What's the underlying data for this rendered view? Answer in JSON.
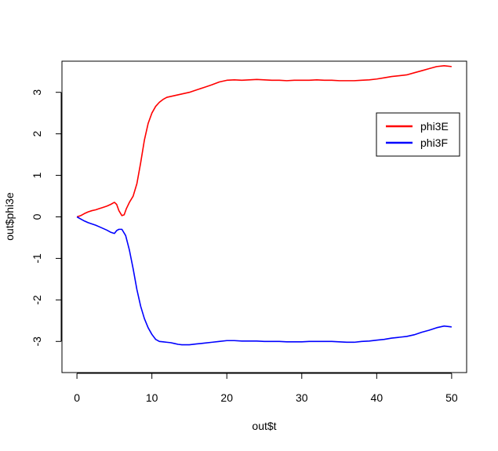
{
  "chart_data": {
    "type": "line",
    "title": "",
    "xlabel": "out$t",
    "ylabel": "out$phi3e",
    "xlim": [
      -2,
      52
    ],
    "ylim": [
      -3.75,
      3.75
    ],
    "xticks": [
      0,
      10,
      20,
      30,
      40,
      50
    ],
    "yticks": [
      -3,
      -2,
      -1,
      0,
      1,
      2,
      3
    ],
    "grid": false,
    "legend_position": "top-right",
    "series": [
      {
        "name": "phi3E",
        "color": "#ff0000",
        "points": [
          [
            0,
            0
          ],
          [
            0.5,
            0.03
          ],
          [
            1,
            0.08
          ],
          [
            1.5,
            0.12
          ],
          [
            2,
            0.15
          ],
          [
            2.5,
            0.17
          ],
          [
            3,
            0.2
          ],
          [
            3.5,
            0.23
          ],
          [
            4,
            0.26
          ],
          [
            4.5,
            0.3
          ],
          [
            5,
            0.35
          ],
          [
            5.3,
            0.3
          ],
          [
            5.6,
            0.15
          ],
          [
            6,
            0.03
          ],
          [
            6.3,
            0.05
          ],
          [
            6.6,
            0.2
          ],
          [
            7,
            0.35
          ],
          [
            7.5,
            0.5
          ],
          [
            8,
            0.8
          ],
          [
            8.5,
            1.3
          ],
          [
            9,
            1.85
          ],
          [
            9.5,
            2.25
          ],
          [
            10,
            2.5
          ],
          [
            10.5,
            2.66
          ],
          [
            11,
            2.76
          ],
          [
            11.5,
            2.83
          ],
          [
            12,
            2.88
          ],
          [
            13,
            2.92
          ],
          [
            14,
            2.96
          ],
          [
            15,
            3.0
          ],
          [
            16,
            3.06
          ],
          [
            17,
            3.12
          ],
          [
            18,
            3.18
          ],
          [
            19,
            3.25
          ],
          [
            20,
            3.29
          ],
          [
            21,
            3.3
          ],
          [
            22,
            3.29
          ],
          [
            23,
            3.3
          ],
          [
            24,
            3.31
          ],
          [
            25,
            3.3
          ],
          [
            26,
            3.29
          ],
          [
            27,
            3.29
          ],
          [
            28,
            3.28
          ],
          [
            29,
            3.29
          ],
          [
            30,
            3.29
          ],
          [
            31,
            3.29
          ],
          [
            32,
            3.3
          ],
          [
            33,
            3.29
          ],
          [
            34,
            3.29
          ],
          [
            35,
            3.28
          ],
          [
            36,
            3.28
          ],
          [
            37,
            3.28
          ],
          [
            38,
            3.29
          ],
          [
            39,
            3.3
          ],
          [
            40,
            3.32
          ],
          [
            41,
            3.35
          ],
          [
            42,
            3.38
          ],
          [
            43,
            3.4
          ],
          [
            44,
            3.42
          ],
          [
            45,
            3.47
          ],
          [
            46,
            3.52
          ],
          [
            47,
            3.57
          ],
          [
            48,
            3.62
          ],
          [
            49,
            3.64
          ],
          [
            50,
            3.62
          ]
        ]
      },
      {
        "name": "phi3F",
        "color": "#0000ff",
        "points": [
          [
            0,
            0
          ],
          [
            0.5,
            -0.05
          ],
          [
            1,
            -0.1
          ],
          [
            1.5,
            -0.14
          ],
          [
            2,
            -0.17
          ],
          [
            2.5,
            -0.2
          ],
          [
            3,
            -0.24
          ],
          [
            3.5,
            -0.28
          ],
          [
            4,
            -0.32
          ],
          [
            4.5,
            -0.37
          ],
          [
            5,
            -0.4
          ],
          [
            5.3,
            -0.33
          ],
          [
            5.6,
            -0.3
          ],
          [
            6,
            -0.3
          ],
          [
            6.5,
            -0.45
          ],
          [
            7,
            -0.8
          ],
          [
            7.5,
            -1.25
          ],
          [
            8,
            -1.75
          ],
          [
            8.5,
            -2.15
          ],
          [
            9,
            -2.45
          ],
          [
            9.5,
            -2.67
          ],
          [
            10,
            -2.83
          ],
          [
            10.5,
            -2.95
          ],
          [
            11,
            -3.0
          ],
          [
            11.5,
            -3.01
          ],
          [
            12,
            -3.02
          ],
          [
            12.5,
            -3.03
          ],
          [
            13,
            -3.05
          ],
          [
            13.5,
            -3.07
          ],
          [
            14,
            -3.08
          ],
          [
            15,
            -3.08
          ],
          [
            16,
            -3.06
          ],
          [
            17,
            -3.04
          ],
          [
            18,
            -3.02
          ],
          [
            19,
            -3.0
          ],
          [
            20,
            -2.98
          ],
          [
            21,
            -2.98
          ],
          [
            22,
            -2.99
          ],
          [
            23,
            -2.99
          ],
          [
            24,
            -2.99
          ],
          [
            25,
            -3.0
          ],
          [
            26,
            -3.0
          ],
          [
            27,
            -3.0
          ],
          [
            28,
            -3.01
          ],
          [
            29,
            -3.01
          ],
          [
            30,
            -3.01
          ],
          [
            31,
            -3.0
          ],
          [
            32,
            -3.0
          ],
          [
            33,
            -3.0
          ],
          [
            34,
            -3.0
          ],
          [
            35,
            -3.01
          ],
          [
            36,
            -3.02
          ],
          [
            37,
            -3.02
          ],
          [
            38,
            -3.0
          ],
          [
            39,
            -2.99
          ],
          [
            40,
            -2.97
          ],
          [
            41,
            -2.95
          ],
          [
            42,
            -2.92
          ],
          [
            43,
            -2.9
          ],
          [
            44,
            -2.88
          ],
          [
            45,
            -2.84
          ],
          [
            46,
            -2.78
          ],
          [
            47,
            -2.73
          ],
          [
            48,
            -2.67
          ],
          [
            49,
            -2.63
          ],
          [
            50,
            -2.65
          ]
        ]
      }
    ]
  }
}
